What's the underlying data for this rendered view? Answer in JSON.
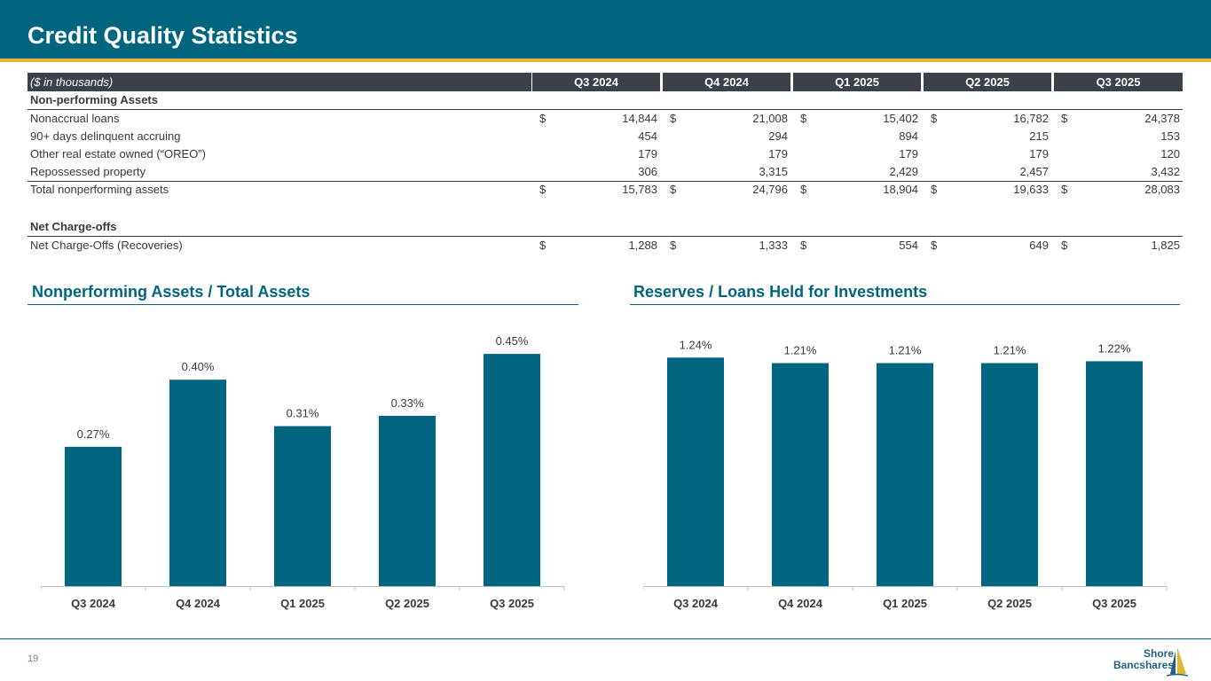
{
  "title": "Credit Quality Statistics",
  "table": {
    "units_label": "($ in thousands)",
    "quarters": [
      "Q3 2024",
      "Q4 2024",
      "Q1 2025",
      "Q2 2025",
      "Q3 2025"
    ],
    "currency_symbol": "$",
    "section_npa": "Non-performing Assets",
    "rows": [
      {
        "label": "Nonaccrual loans",
        "values": [
          "14,844",
          "21,008",
          "15,402",
          "16,782",
          "24,378"
        ],
        "currency": true
      },
      {
        "label": "90+ days delinquent accruing",
        "values": [
          "454",
          "294",
          "894",
          "215",
          "153"
        ],
        "currency": false
      },
      {
        "label": "Other real estate owned (“OREO”)",
        "values": [
          "179",
          "179",
          "179",
          "179",
          "120"
        ],
        "currency": false
      },
      {
        "label": "Repossessed property",
        "values": [
          "306",
          "3,315",
          "2,429",
          "2,457",
          "3,432"
        ],
        "currency": false
      }
    ],
    "total_label": "Total nonperforming assets",
    "total_values": [
      "15,783",
      "24,796",
      "18,904",
      "19,633",
      "28,083"
    ],
    "section_nco": "Net Charge-offs",
    "nco_label": "Net Charge-Offs (Recoveries)",
    "nco_values": [
      "1,288",
      "1,333",
      "554",
      "649",
      "1,825"
    ]
  },
  "chart_data": [
    {
      "type": "bar",
      "title": "Nonperforming Assets / Total Assets",
      "categories": [
        "Q3 2024",
        "Q4 2024",
        "Q1 2025",
        "Q2 2025",
        "Q3 2025"
      ],
      "values": [
        0.27,
        0.4,
        0.31,
        0.33,
        0.45
      ],
      "value_labels": [
        "0.27%",
        "0.40%",
        "0.31%",
        "0.33%",
        "0.45%"
      ],
      "ylim": [
        0,
        0.5
      ],
      "color": "#00667f"
    },
    {
      "type": "bar",
      "title": "Reserves / Loans Held for Investments",
      "categories": [
        "Q3 2024",
        "Q4 2024",
        "Q1 2025",
        "Q2 2025",
        "Q3 2025"
      ],
      "values": [
        1.24,
        1.21,
        1.21,
        1.21,
        1.22
      ],
      "value_labels": [
        "1.24%",
        "1.21%",
        "1.21%",
        "1.21%",
        "1.22%"
      ],
      "ylim": [
        0,
        1.4
      ],
      "color": "#00667f"
    }
  ],
  "footer": {
    "page_number": "19",
    "logo_line1": "Shore",
    "logo_line2": "Bancshares"
  },
  "colors": {
    "brand": "#00667f",
    "accent": "#e0b530",
    "table_header": "#3b4149"
  }
}
